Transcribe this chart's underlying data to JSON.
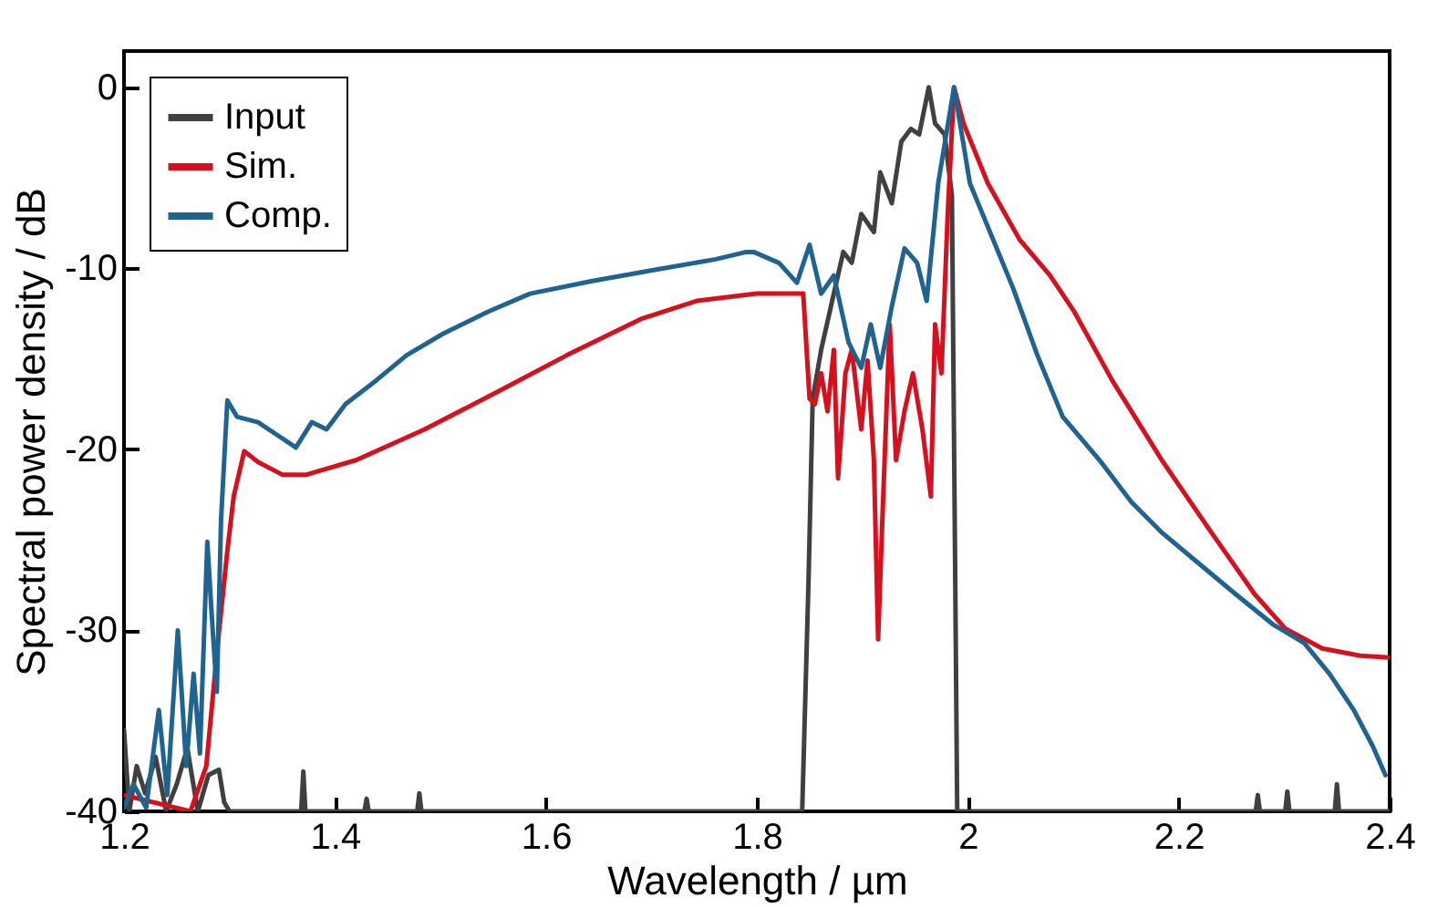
{
  "chart_data": {
    "type": "line",
    "xlabel": "Wavelength / µm",
    "ylabel": "Spectral power density / dB",
    "xlim": [
      1.2,
      2.4
    ],
    "ylim": [
      -40,
      2
    ],
    "xticks": [
      1.2,
      1.4,
      1.6,
      1.8,
      2,
      2.2,
      2.4
    ],
    "yticks": [
      -40,
      -30,
      -20,
      -10,
      0
    ],
    "legend": "top left",
    "series": [
      {
        "name": "Input",
        "color": "#404040",
        "x": [
          1.2,
          1.205,
          1.212,
          1.22,
          1.23,
          1.24,
          1.25,
          1.26,
          1.27,
          1.28,
          1.29,
          1.295,
          1.3,
          1.368,
          1.37,
          1.372,
          1.428,
          1.43,
          1.432,
          1.478,
          1.48,
          1.482,
          1.843,
          1.845,
          1.849,
          1.853,
          1.861,
          1.873,
          1.882,
          1.89,
          1.899,
          1.911,
          1.917,
          1.928,
          1.937,
          1.946,
          1.954,
          1.963,
          1.969,
          1.978,
          1.985,
          1.99,
          2.273,
          2.275,
          2.277,
          2.301,
          2.303,
          2.305,
          2.348,
          2.35,
          2.352,
          2.4
        ],
        "values": [
          -35.5,
          -40,
          -37.5,
          -39,
          -37,
          -40,
          -38.5,
          -36.5,
          -40,
          -38,
          -37.7,
          -39.5,
          -40,
          -40,
          -37.8,
          -40,
          -40,
          -39.3,
          -40,
          -40,
          -39,
          -40,
          -40,
          -35.8,
          -27.3,
          -17.2,
          -14.5,
          -11.4,
          -9.1,
          -9.7,
          -7,
          -8,
          -4.7,
          -6.4,
          -3,
          -2.3,
          -2.6,
          0,
          -2,
          -2.6,
          -6,
          -40,
          -40,
          -39.1,
          -40,
          -40,
          -38.9,
          -40,
          -40,
          -38.5,
          -40,
          -40
        ]
      },
      {
        "name": "Sim.",
        "color": "#d7101d",
        "x": [
          1.2,
          1.263,
          1.278,
          1.289,
          1.298,
          1.304,
          1.314,
          1.327,
          1.35,
          1.373,
          1.42,
          1.485,
          1.555,
          1.62,
          1.69,
          1.743,
          1.8,
          1.844,
          1.85,
          1.855,
          1.861,
          1.867,
          1.873,
          1.877,
          1.884,
          1.89,
          1.899,
          1.905,
          1.911,
          1.915,
          1.919,
          1.926,
          1.932,
          1.94,
          1.948,
          1.957,
          1.965,
          1.969,
          1.975,
          1.981,
          1.987,
          1.996,
          2.019,
          2.049,
          2.078,
          2.101,
          2.137,
          2.184,
          2.231,
          2.272,
          2.301,
          2.336,
          2.372,
          2.4
        ],
        "values": [
          -39.1,
          -40,
          -37.5,
          -30.7,
          -25.6,
          -22.6,
          -20.1,
          -20.7,
          -21.4,
          -21.4,
          -20.6,
          -18.9,
          -16.8,
          -14.8,
          -12.8,
          -11.8,
          -11.4,
          -11.4,
          -17.2,
          -17.5,
          -15.8,
          -17.9,
          -14.5,
          -21.6,
          -15.8,
          -14.5,
          -18.9,
          -15.1,
          -20.6,
          -30.5,
          -23.9,
          -13.1,
          -20.6,
          -17.9,
          -15.8,
          -18.9,
          -22.6,
          -13.1,
          -15.8,
          -7,
          0,
          -2,
          -5.3,
          -8.4,
          -10.4,
          -12.4,
          -16.2,
          -20.6,
          -24.6,
          -28,
          -29.9,
          -31,
          -31.4,
          -31.5
        ]
      },
      {
        "name": "Comp.",
        "color": "#1f6391",
        "x": [
          1.2,
          1.209,
          1.221,
          1.233,
          1.241,
          1.251,
          1.259,
          1.266,
          1.272,
          1.279,
          1.283,
          1.288,
          1.292,
          1.298,
          1.307,
          1.327,
          1.345,
          1.363,
          1.378,
          1.392,
          1.41,
          1.439,
          1.468,
          1.503,
          1.545,
          1.585,
          1.644,
          1.702,
          1.761,
          1.79,
          1.797,
          1.821,
          1.838,
          1.85,
          1.861,
          1.873,
          1.887,
          1.899,
          1.908,
          1.917,
          1.928,
          1.94,
          1.952,
          1.961,
          1.972,
          1.987,
          2.002,
          2.019,
          2.043,
          2.066,
          2.09,
          2.125,
          2.155,
          2.184,
          2.219,
          2.254,
          2.29,
          2.319,
          2.343,
          2.366,
          2.384,
          2.396
        ],
        "values": [
          -39.8,
          -38.5,
          -39.8,
          -34.4,
          -39.1,
          -30,
          -37.5,
          -32.4,
          -36.8,
          -25.1,
          -29,
          -33.4,
          -23.9,
          -17.3,
          -18.2,
          -18.5,
          -19.2,
          -19.9,
          -18.5,
          -18.9,
          -17.5,
          -16.2,
          -14.8,
          -13.6,
          -12.4,
          -11.4,
          -10.7,
          -10.1,
          -9.5,
          -9.1,
          -9.1,
          -9.7,
          -10.8,
          -8.7,
          -11.4,
          -10.4,
          -14.1,
          -15.5,
          -13.1,
          -15.5,
          -12.1,
          -8.9,
          -9.7,
          -11.8,
          -5.3,
          0,
          -5.3,
          -7.7,
          -11.1,
          -14.8,
          -18.2,
          -20.6,
          -22.9,
          -24.6,
          -26.3,
          -28,
          -29.7,
          -30.7,
          -32.4,
          -34.4,
          -36.4,
          -38
        ]
      }
    ]
  }
}
